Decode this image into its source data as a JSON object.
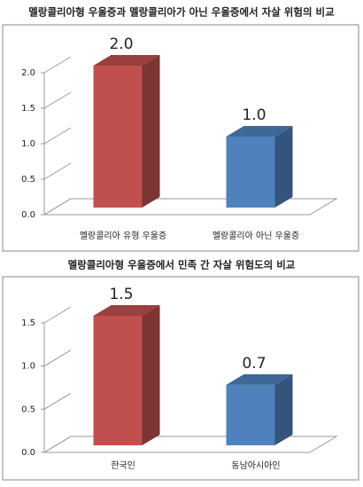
{
  "chart_data": [
    {
      "type": "bar3d",
      "title": "멜랑콜리아형 우울증과 멜랑콜리아가 아닌 우울증에서 자살 위험의 비교",
      "categories": [
        "멜랑콜리아 유형 우울증",
        "멜랑콜리아 아닌 우울증"
      ],
      "values": [
        2.0,
        1.0
      ],
      "value_labels": [
        "2.0",
        "1.0"
      ],
      "colors": [
        "#c0504d",
        "#4f81bd"
      ],
      "ylim": [
        0,
        2
      ],
      "yticks": [
        {
          "value": 0,
          "label": "0.0"
        },
        0.5,
        {
          "value": 1,
          "label": "1.0"
        },
        1.5,
        {
          "value": 2,
          "label": "2.0"
        }
      ]
    },
    {
      "type": "bar3d",
      "title": "멜랑콜리아형 우울증에서 민족 간 자살 위험도의 비교",
      "categories": [
        "한국인",
        "동남아시아인"
      ],
      "values": [
        1.5,
        0.7
      ],
      "colors": [
        "#c0504d",
        "#4f81bd"
      ],
      "ylim": [
        0,
        1.5
      ],
      "yticks": [
        {
          "value": 0,
          "label": "0.0"
        },
        0.5,
        {
          "value": 1,
          "label": "1.0"
        },
        1.5
      ]
    }
  ]
}
